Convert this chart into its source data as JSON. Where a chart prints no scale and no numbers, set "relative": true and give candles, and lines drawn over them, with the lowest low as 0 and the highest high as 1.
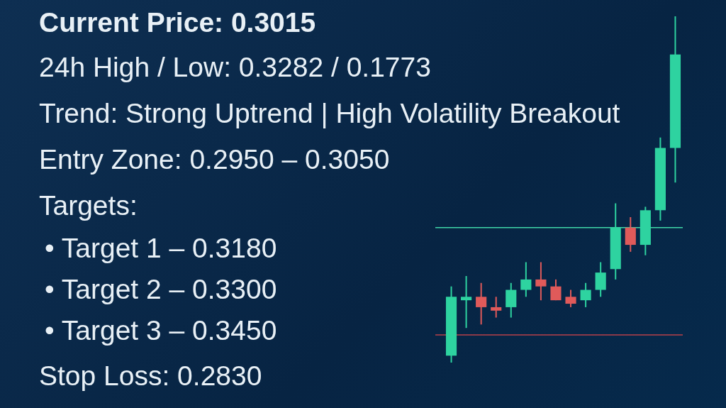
{
  "chart_data": {
    "type": "candlestick",
    "relative": true,
    "title": "Current Price: 0.3015",
    "subtitle": "24h High / Low: 0.3282 / 0.1773",
    "annotations": [
      "Trend: Strong Uptrend | High Volatility Breakout",
      "Entry Zone: 0.2950 – 0.3050",
      "Targets:",
      "• Target 1 – 0.3180",
      "• Target 2 – 0.3300",
      "• Target 3 – 0.3450",
      "Stop Loss: 0.2830"
    ],
    "categories": [
      null,
      null,
      null,
      null,
      null,
      null,
      null,
      null,
      null,
      null,
      null,
      null,
      null,
      null,
      null,
      null
    ],
    "ohlc": [
      [
        0.02,
        0.22,
        0,
        0.19
      ],
      [
        0.18,
        0.25,
        0.1,
        0.19
      ],
      [
        0.19,
        0.23,
        0.11,
        0.16
      ],
      [
        0.16,
        0.19,
        0.13,
        0.15
      ],
      [
        0.16,
        0.23,
        0.13,
        0.21
      ],
      [
        0.21,
        0.29,
        0.19,
        0.24
      ],
      [
        0.24,
        0.29,
        0.18,
        0.22
      ],
      [
        0.22,
        0.24,
        0.18,
        0.18
      ],
      [
        0.19,
        0.21,
        0.16,
        0.17
      ],
      [
        0.18,
        0.23,
        0.16,
        0.21
      ],
      [
        0.21,
        0.29,
        0.19,
        0.26
      ],
      [
        0.27,
        0.46,
        0.24,
        0.39
      ],
      [
        0.39,
        0.42,
        0.32,
        0.34
      ],
      [
        0.34,
        0.45,
        0.31,
        0.44
      ],
      [
        0.44,
        0.65,
        0.41,
        0.62
      ],
      [
        0.62,
        1.0,
        0.52,
        0.89
      ]
    ],
    "colors": [
      "#2ed3a0",
      "#2ed3a0",
      "#e05a5a",
      "#e05a5a",
      "#2ed3a0",
      "#2ed3a0",
      "#e05a5a",
      "#e05a5a",
      "#e05a5a",
      "#2ed3a0",
      "#2ed3a0",
      "#2ed3a0",
      "#e05a5a",
      "#2ed3a0",
      "#2ed3a0",
      "#2ed3a0"
    ],
    "ref_lines": [
      {
        "axis": "y",
        "value": 0.39,
        "color": "#3fd6a8"
      },
      {
        "axis": "y",
        "value": 0.08,
        "color": "#b8404a"
      }
    ],
    "legend": false
  }
}
